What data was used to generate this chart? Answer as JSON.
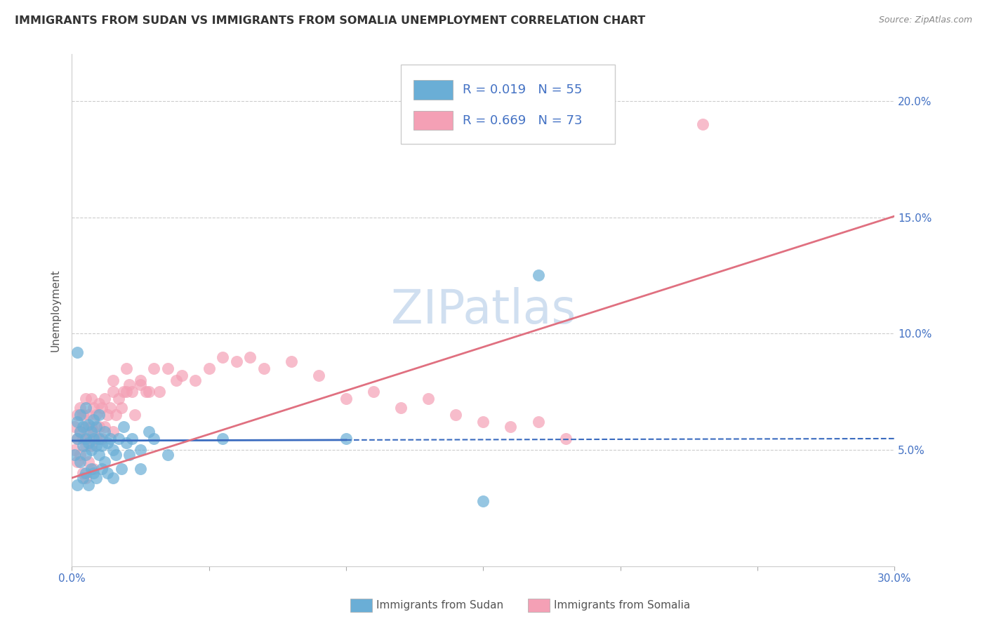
{
  "title": "IMMIGRANTS FROM SUDAN VS IMMIGRANTS FROM SOMALIA UNEMPLOYMENT CORRELATION CHART",
  "source": "Source: ZipAtlas.com",
  "ylabel": "Unemployment",
  "xlim": [
    0.0,
    0.3
  ],
  "ylim": [
    0.0,
    0.22
  ],
  "sudan_color": "#6aaed6",
  "somalia_color": "#f4a0b5",
  "sudan_R": 0.019,
  "sudan_N": 55,
  "somalia_R": 0.669,
  "somalia_N": 73,
  "watermark": "ZIPatlas",
  "watermark_color": "#d0dff0",
  "legend_color": "#4472c4",
  "sudan_line_color": "#3a6bbf",
  "somalia_line_color": "#e07080",
  "sudan_line_intercept": 0.054,
  "sudan_line_slope": 0.003,
  "somalia_line_intercept": 0.038,
  "somalia_line_slope": 0.375,
  "sudan_scatter_x": [
    0.001,
    0.002,
    0.002,
    0.002,
    0.003,
    0.003,
    0.003,
    0.004,
    0.004,
    0.004,
    0.005,
    0.005,
    0.005,
    0.005,
    0.006,
    0.006,
    0.006,
    0.007,
    0.007,
    0.007,
    0.008,
    0.008,
    0.008,
    0.009,
    0.009,
    0.009,
    0.01,
    0.01,
    0.01,
    0.011,
    0.011,
    0.012,
    0.012,
    0.013,
    0.013,
    0.014,
    0.015,
    0.015,
    0.016,
    0.017,
    0.018,
    0.019,
    0.02,
    0.021,
    0.022,
    0.025,
    0.025,
    0.028,
    0.03,
    0.035,
    0.17,
    0.15,
    0.1,
    0.055,
    0.002
  ],
  "sudan_scatter_y": [
    0.048,
    0.055,
    0.062,
    0.035,
    0.058,
    0.045,
    0.065,
    0.052,
    0.06,
    0.038,
    0.055,
    0.048,
    0.068,
    0.04,
    0.053,
    0.061,
    0.035,
    0.05,
    0.058,
    0.042,
    0.055,
    0.063,
    0.04,
    0.052,
    0.06,
    0.038,
    0.055,
    0.048,
    0.065,
    0.052,
    0.042,
    0.058,
    0.045,
    0.053,
    0.04,
    0.055,
    0.05,
    0.038,
    0.048,
    0.055,
    0.042,
    0.06,
    0.053,
    0.048,
    0.055,
    0.05,
    0.042,
    0.058,
    0.055,
    0.048,
    0.125,
    0.028,
    0.055,
    0.055,
    0.092
  ],
  "somalia_scatter_x": [
    0.001,
    0.001,
    0.002,
    0.002,
    0.002,
    0.003,
    0.003,
    0.003,
    0.004,
    0.004,
    0.004,
    0.005,
    0.005,
    0.005,
    0.005,
    0.006,
    0.006,
    0.006,
    0.007,
    0.007,
    0.007,
    0.008,
    0.008,
    0.008,
    0.009,
    0.009,
    0.01,
    0.01,
    0.011,
    0.011,
    0.012,
    0.012,
    0.013,
    0.014,
    0.015,
    0.015,
    0.016,
    0.017,
    0.018,
    0.019,
    0.02,
    0.021,
    0.022,
    0.023,
    0.025,
    0.027,
    0.028,
    0.03,
    0.032,
    0.035,
    0.038,
    0.04,
    0.045,
    0.05,
    0.055,
    0.06,
    0.065,
    0.07,
    0.08,
    0.09,
    0.1,
    0.11,
    0.12,
    0.13,
    0.14,
    0.15,
    0.16,
    0.17,
    0.18,
    0.02,
    0.025,
    0.23,
    0.015
  ],
  "somalia_scatter_y": [
    0.05,
    0.06,
    0.055,
    0.065,
    0.045,
    0.058,
    0.068,
    0.048,
    0.055,
    0.065,
    0.04,
    0.052,
    0.06,
    0.072,
    0.038,
    0.055,
    0.065,
    0.045,
    0.052,
    0.06,
    0.072,
    0.058,
    0.068,
    0.042,
    0.055,
    0.065,
    0.06,
    0.07,
    0.055,
    0.068,
    0.06,
    0.072,
    0.065,
    0.068,
    0.058,
    0.075,
    0.065,
    0.072,
    0.068,
    0.075,
    0.075,
    0.078,
    0.075,
    0.065,
    0.08,
    0.075,
    0.075,
    0.085,
    0.075,
    0.085,
    0.08,
    0.082,
    0.08,
    0.085,
    0.09,
    0.088,
    0.09,
    0.085,
    0.088,
    0.082,
    0.072,
    0.075,
    0.068,
    0.072,
    0.065,
    0.062,
    0.06,
    0.062,
    0.055,
    0.085,
    0.078,
    0.19,
    0.08
  ]
}
